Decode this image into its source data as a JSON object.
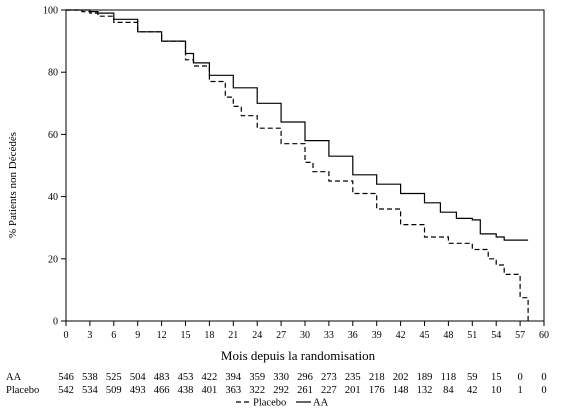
{
  "chart_data": {
    "type": "line",
    "title": "",
    "xlabel": "Mois depuis la randomisation",
    "ylabel": "% Patients non Décédés",
    "xlim": [
      0,
      60
    ],
    "ylim": [
      0,
      100
    ],
    "x_ticks": [
      0,
      3,
      6,
      9,
      12,
      15,
      18,
      21,
      24,
      27,
      30,
      33,
      36,
      39,
      42,
      45,
      48,
      51,
      54,
      57,
      60
    ],
    "y_ticks": [
      0,
      20,
      40,
      60,
      80,
      100
    ],
    "grid": false,
    "legend": {
      "placement": "bottom",
      "entries": [
        "Placebo",
        "AA"
      ]
    },
    "series": [
      {
        "name": "Placebo",
        "style": "dashed",
        "x": [
          0,
          2,
          3,
          4,
          6,
          9,
          12,
          15,
          16,
          18,
          20,
          21,
          22,
          24,
          27,
          30,
          31,
          33,
          36,
          39,
          42,
          45,
          48,
          51,
          52,
          53,
          54,
          55,
          55.5,
          57,
          58,
          58
        ],
        "y": [
          100,
          99.5,
          99,
          98,
          96,
          93,
          90,
          84,
          82,
          77,
          72,
          69,
          66,
          62,
          57,
          51,
          48,
          45,
          41,
          36,
          31,
          27,
          25,
          23,
          23,
          20,
          18,
          15,
          15,
          7.5,
          7.5,
          0
        ]
      },
      {
        "name": "AA",
        "style": "solid",
        "x": [
          0,
          2,
          3,
          4,
          6,
          9,
          12,
          15,
          16,
          18,
          21,
          24,
          27,
          30,
          33,
          36,
          39,
          42,
          45,
          47,
          49,
          51,
          52,
          54,
          55,
          57,
          58
        ],
        "y": [
          100,
          100,
          99.5,
          99,
          97,
          93,
          90,
          86,
          83,
          79,
          75,
          70,
          64,
          58,
          53,
          47,
          44,
          41,
          38,
          35,
          33,
          32.5,
          28,
          27,
          26,
          26,
          26
        ]
      }
    ],
    "at_risk": {
      "times": [
        0,
        3,
        6,
        9,
        12,
        15,
        18,
        21,
        24,
        27,
        30,
        33,
        36,
        39,
        42,
        45,
        48,
        51,
        54,
        57,
        60
      ],
      "rows": [
        {
          "label": "AA",
          "values": [
            "546",
            "538",
            "525",
            "504",
            "483",
            "453",
            "422",
            "394",
            "359",
            "330",
            "296",
            "273",
            "235",
            "218",
            "202",
            "189",
            "118",
            "59",
            "15",
            "0",
            "0"
          ]
        },
        {
          "label": "Placebo",
          "values": [
            "542",
            "534",
            "509",
            "493",
            "466",
            "438",
            "401",
            "363",
            "322",
            "292",
            "261",
            "227",
            "201",
            "176",
            "148",
            "132",
            "84",
            "42",
            "10",
            "1",
            "0"
          ]
        }
      ]
    }
  }
}
